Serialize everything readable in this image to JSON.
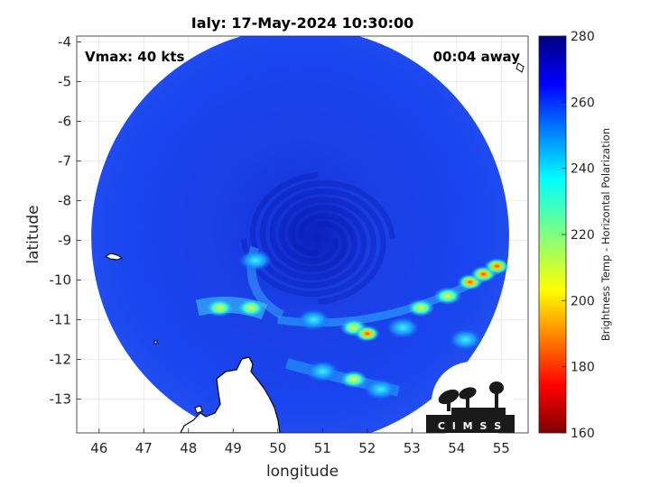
{
  "figure": {
    "title": "Ialy: 17-May-2024 10:30:00",
    "annotation_left": "Vmax: 40 kts",
    "annotation_right": "00:04 away",
    "logo_text": "C I M S S"
  },
  "map": {
    "xlabel": "longitude",
    "ylabel": "latitude",
    "xlim": [
      45.5,
      55.6
    ],
    "ylim": [
      -13.85,
      -3.85
    ],
    "xticks": [
      46,
      47,
      48,
      49,
      50,
      51,
      52,
      53,
      54,
      55
    ],
    "yticks": [
      -4,
      -5,
      -6,
      -7,
      -8,
      -9,
      -10,
      -11,
      -12,
      -13
    ],
    "grid": true,
    "swath": {
      "center_lon": 50.5,
      "center_lat": -8.9,
      "radius_deg": 4.95
    },
    "storm_center": {
      "lon": 50.9,
      "lat": -8.95
    }
  },
  "colorbar": {
    "label": "Brightness Temp - Horizontal Polarization",
    "min": 160,
    "max": 280,
    "ticks": [
      160,
      180,
      200,
      220,
      240,
      260,
      280
    ],
    "colormap": "jet"
  },
  "chart_data": {
    "type": "heatmap",
    "title": "Ialy: 17-May-2024 10:30:00",
    "xlabel": "longitude",
    "ylabel": "latitude",
    "xlim": [
      45.5,
      55.6
    ],
    "ylim": [
      -13.85,
      -3.85
    ],
    "value_range": [
      160,
      280
    ],
    "background_value": 262,
    "cold_features": [
      {
        "lon": 49.4,
        "lat": -10.7,
        "value": 205
      },
      {
        "lon": 48.7,
        "lat": -10.7,
        "value": 218
      },
      {
        "lon": 50.8,
        "lat": -11.0,
        "value": 225
      },
      {
        "lon": 51.7,
        "lat": -11.2,
        "value": 215
      },
      {
        "lon": 52.0,
        "lat": -11.35,
        "value": 185
      },
      {
        "lon": 52.8,
        "lat": -11.2,
        "value": 225
      },
      {
        "lon": 53.2,
        "lat": -10.7,
        "value": 200
      },
      {
        "lon": 53.8,
        "lat": -10.4,
        "value": 205
      },
      {
        "lon": 54.3,
        "lat": -10.05,
        "value": 190
      },
      {
        "lon": 54.6,
        "lat": -9.85,
        "value": 185
      },
      {
        "lon": 54.9,
        "lat": -9.65,
        "value": 195
      },
      {
        "lon": 51.0,
        "lat": -12.3,
        "value": 225
      },
      {
        "lon": 51.7,
        "lat": -12.5,
        "value": 212
      },
      {
        "lon": 52.3,
        "lat": -12.75,
        "value": 228
      },
      {
        "lon": 49.5,
        "lat": -9.5,
        "value": 240
      },
      {
        "lon": 54.2,
        "lat": -11.5,
        "value": 232
      }
    ]
  }
}
